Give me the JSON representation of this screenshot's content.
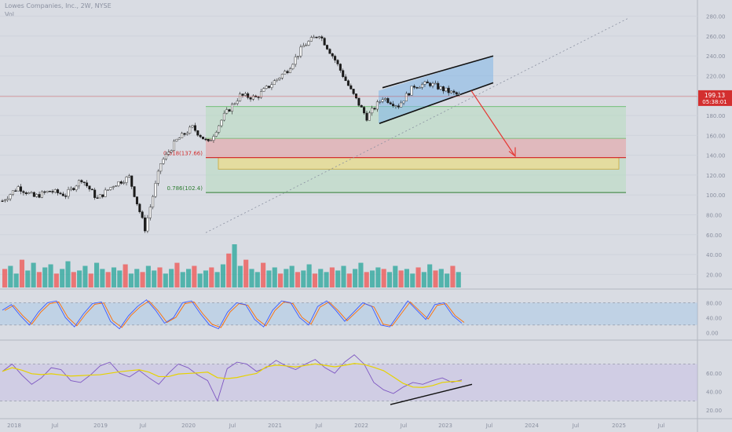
{
  "header": {
    "symbol": "Lowes Companies, Inc., 2W, NYSE",
    "sub": "Vol"
  },
  "price_tag": {
    "price": "199.13",
    "countdown": "05:38:01",
    "color": "#d32f2f"
  },
  "colors": {
    "bg": "#d9dce3",
    "grid": "#cfd3dc",
    "up": "#26a69a",
    "down": "#ef5350",
    "candle": "#1b1b1b",
    "channel_fill": "#7fb6e8",
    "green_zone": "#b7dcc0",
    "red_zone": "#e3a9ad",
    "yellow_zone": "#e8dc9a",
    "stoch_k": "#3d5afe",
    "stoch_d": "#ff6d00",
    "rsi": "#7e57c2",
    "rsi_ma": "#e6d200"
  },
  "fib_labels": [
    {
      "label": "0.618(137.66)",
      "color": "#d32f2f",
      "price": 137.66
    },
    {
      "label": "0.786(102.4)",
      "color": "#2e7d32",
      "price": 102.4
    }
  ],
  "x_axis_labels": [
    "2018",
    "Jul",
    "2019",
    "Jul",
    "2020",
    "Jul",
    "2021",
    "Jul",
    "2022",
    "Jul",
    "2023",
    "Jul",
    "2024",
    "Jul",
    "2025",
    "Jul"
  ],
  "chart_data": [
    {
      "type": "line",
      "name": "price",
      "y_ticks": [
        280,
        260,
        240,
        220,
        200,
        180,
        160,
        140,
        120,
        100,
        80,
        60,
        40,
        20
      ],
      "ylim": [
        10,
        290
      ],
      "x": [
        "2018-01",
        "2018-04",
        "2018-07",
        "2018-10",
        "2019-01",
        "2019-04",
        "2019-07",
        "2019-10",
        "2020-01",
        "2020-03",
        "2020-05",
        "2020-07",
        "2020-09",
        "2020-11",
        "2021-01",
        "2021-03",
        "2021-05",
        "2021-07",
        "2021-09",
        "2021-11",
        "2021-12",
        "2022-02",
        "2022-04",
        "2022-06",
        "2022-08",
        "2022-10",
        "2022-12",
        "2023-02",
        "2023-04",
        "2023-05"
      ],
      "values": [
        94,
        108,
        98,
        104,
        100,
        116,
        96,
        110,
        118,
        66,
        132,
        155,
        168,
        152,
        180,
        200,
        198,
        212,
        226,
        250,
        262,
        236,
        205,
        178,
        198,
        190,
        210,
        212,
        205,
        199.13
      ]
    },
    {
      "type": "bar",
      "name": "volume",
      "values": [
        12,
        14,
        9,
        18,
        11,
        16,
        10,
        13,
        15,
        9,
        12,
        17,
        10,
        11,
        14,
        9,
        16,
        12,
        10,
        13,
        11,
        15,
        9,
        12,
        10,
        14,
        11,
        13,
        9,
        12,
        16,
        10,
        12,
        14,
        9,
        11,
        13,
        10,
        15,
        22,
        28,
        14,
        18,
        12,
        10,
        16,
        11,
        13,
        9,
        12,
        14,
        10,
        11,
        15,
        9,
        12,
        10,
        13,
        11,
        14,
        9,
        12,
        16,
        10,
        11,
        13,
        12,
        10,
        14,
        11,
        12,
        9,
        13,
        10,
        15,
        11,
        12,
        9,
        14,
        10
      ]
    },
    {
      "type": "line",
      "name": "stochastic",
      "y_ticks": [
        80.0,
        40.0,
        0.0
      ],
      "ylim": [
        -10,
        100
      ],
      "values": [
        60,
        75,
        45,
        20,
        55,
        80,
        85,
        40,
        15,
        50,
        78,
        82,
        30,
        10,
        45,
        70,
        88,
        60,
        25,
        40,
        80,
        85,
        50,
        20,
        10,
        55,
        80,
        75,
        35,
        15,
        60,
        85,
        80,
        40,
        20,
        70,
        85,
        60,
        30,
        55,
        80,
        70,
        20,
        15,
        50,
        85,
        60,
        35,
        75,
        80,
        45,
        25
      ]
    },
    {
      "type": "line",
      "name": "rsi",
      "y_ticks": [
        60.0,
        40.0,
        20.0
      ],
      "ylim": [
        15,
        90
      ],
      "values": [
        62,
        70,
        58,
        48,
        55,
        66,
        64,
        52,
        50,
        58,
        68,
        72,
        60,
        56,
        63,
        55,
        48,
        60,
        70,
        66,
        58,
        52,
        30,
        65,
        72,
        70,
        62,
        66,
        74,
        68,
        64,
        70,
        75,
        66,
        60,
        72,
        80,
        70,
        50,
        42,
        38,
        45,
        50,
        48,
        52,
        55,
        50,
        53
      ]
    }
  ]
}
